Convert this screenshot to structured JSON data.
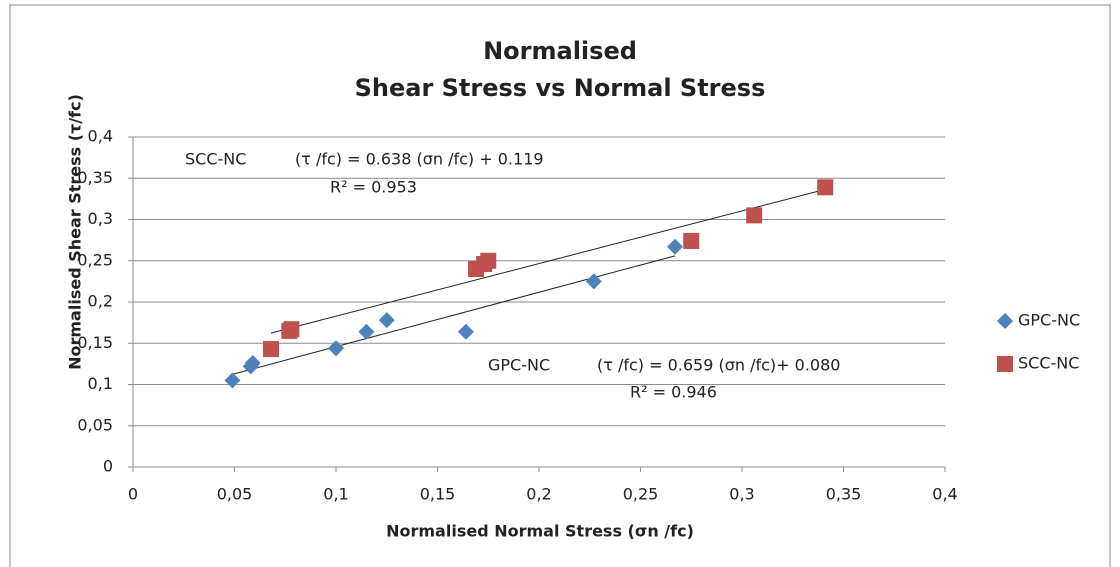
{
  "chart_data": {
    "type": "scatter",
    "title": [
      "Normalised",
      "Shear Stress vs Normal Stress"
    ],
    "x_label": "Normalised Normal Stress (σn /fc)",
    "y_label": "Normalised Shear Stress (τ/fc)",
    "xlim": [
      0,
      0.4
    ],
    "ylim": [
      0,
      0.4
    ],
    "xticks": [
      0,
      {
        "value": 0.05,
        "label": "0,05"
      },
      {
        "value": 0.1,
        "label": "0,1"
      },
      {
        "value": 0.15,
        "label": "0,15"
      },
      {
        "value": 0.2,
        "label": "0,2"
      },
      {
        "value": 0.25,
        "label": "0,25"
      },
      {
        "value": 0.3,
        "label": "0,3"
      },
      {
        "value": 0.35,
        "label": "0,35"
      },
      {
        "value": 0.4,
        "label": "0,4"
      }
    ],
    "yticks": [
      0,
      {
        "value": 0.05,
        "label": "0,05"
      },
      {
        "value": 0.1,
        "label": "0,1"
      },
      {
        "value": 0.15,
        "label": "0,15"
      },
      {
        "value": 0.2,
        "label": "0,2"
      },
      {
        "value": 0.25,
        "label": "0,25"
      },
      {
        "value": 0.3,
        "label": "0,3"
      },
      {
        "value": 0.35,
        "label": "0,35"
      },
      {
        "value": 0.4,
        "label": "0,4"
      }
    ],
    "grid": true,
    "legend": "right",
    "series": [
      {
        "name": "GPC-NC",
        "color": "#4f81bd",
        "marker": "diamond",
        "x": [
          0.049,
          0.058,
          0.059,
          0.1,
          0.115,
          0.125,
          0.164,
          0.227,
          0.267
        ],
        "values": [
          0.105,
          0.122,
          0.126,
          0.144,
          0.164,
          0.178,
          0.164,
          0.225,
          0.267
        ],
        "trendline": {
          "slope": 0.659,
          "intercept": 0.08
        }
      },
      {
        "name": "SCC-NC",
        "color": "#c0504d",
        "marker": "square",
        "x": [
          0.068,
          0.077,
          0.078,
          0.169,
          0.173,
          0.175,
          0.275,
          0.306,
          0.341
        ],
        "values": [
          0.143,
          0.165,
          0.167,
          0.24,
          0.246,
          0.25,
          0.274,
          0.305,
          0.339
        ],
        "trendline": {
          "slope": 0.638,
          "intercept": 0.119
        }
      }
    ],
    "annotations": [
      "SCC-NC",
      "(τ /fc) = 0.638 (σn /fc) + 0.119",
      "R² = 0.953",
      "GPC-NC",
      "(τ /fc) = 0.659 (σn /fc)+ 0.080",
      "R² = 0.946"
    ]
  }
}
